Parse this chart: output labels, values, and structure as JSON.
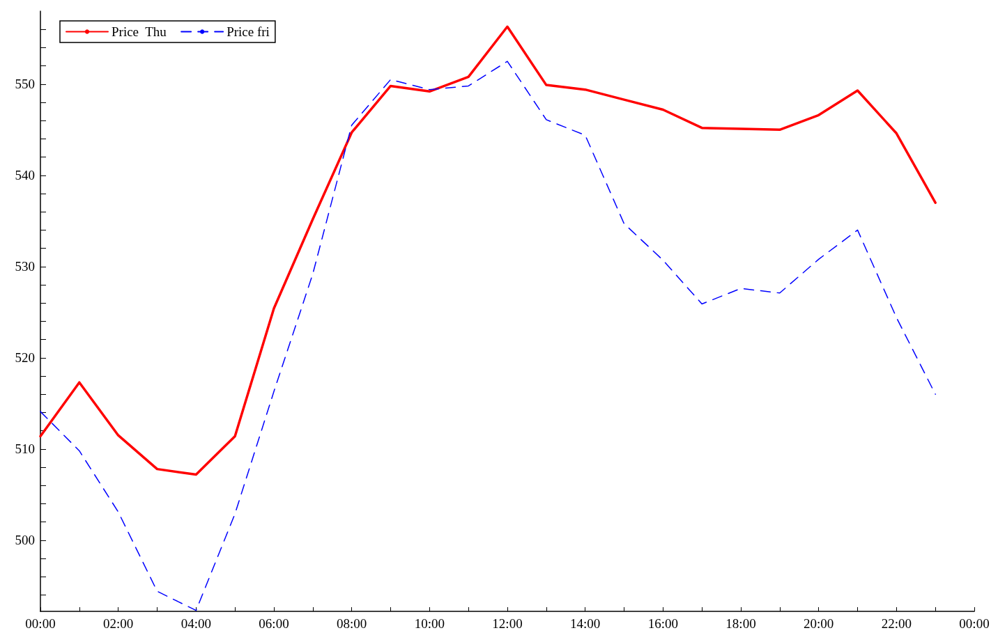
{
  "chart_data": {
    "type": "line",
    "x": [
      0,
      1,
      2,
      3,
      4,
      5,
      6,
      7,
      8,
      9,
      10,
      11,
      12,
      13,
      14,
      15,
      16,
      17,
      18,
      19,
      20,
      21,
      22,
      23
    ],
    "series": [
      {
        "name": "Price  Thu",
        "color": "#ff0000",
        "line_style": "solid",
        "values": [
          511.4,
          517.3,
          511.5,
          507.8,
          507.2,
          511.4,
          525.4,
          535.2,
          544.7,
          549.8,
          549.2,
          550.8,
          556.3,
          549.9,
          549.4,
          548.3,
          547.2,
          545.2,
          545.1,
          545.0,
          546.6,
          549.3,
          544.6,
          537.0
        ]
      },
      {
        "name": "Price fri",
        "color": "#0000ff",
        "line_style": "dashed",
        "values": [
          514.1,
          509.8,
          503.1,
          494.4,
          492.3,
          502.9,
          516.3,
          529.2,
          545.5,
          550.5,
          549.4,
          549.8,
          552.5,
          546.1,
          544.4,
          534.7,
          530.7,
          525.9,
          527.6,
          527.1,
          530.8,
          534.0,
          524.4,
          516.0
        ]
      }
    ],
    "xlim": [
      0,
      24
    ],
    "xticks": [
      {
        "value": 0,
        "label": "00:00"
      },
      {
        "value": 1,
        "label": null
      },
      {
        "value": 2,
        "label": "02:00"
      },
      {
        "value": 3,
        "label": null
      },
      {
        "value": 4,
        "label": "04:00"
      },
      {
        "value": 5,
        "label": null
      },
      {
        "value": 6,
        "label": "06:00"
      },
      {
        "value": 7,
        "label": null
      },
      {
        "value": 8,
        "label": "08:00"
      },
      {
        "value": 9,
        "label": null
      },
      {
        "value": 10,
        "label": "10:00"
      },
      {
        "value": 11,
        "label": null
      },
      {
        "value": 12,
        "label": "12:00"
      },
      {
        "value": 13,
        "label": null
      },
      {
        "value": 14,
        "label": "14:00"
      },
      {
        "value": 15,
        "label": null
      },
      {
        "value": 16,
        "label": "16:00"
      },
      {
        "value": 17,
        "label": null
      },
      {
        "value": 18,
        "label": "18:00"
      },
      {
        "value": 19,
        "label": null
      },
      {
        "value": 20,
        "label": "20:00"
      },
      {
        "value": 21,
        "label": null
      },
      {
        "value": 22,
        "label": "22:00"
      },
      {
        "value": 23,
        "label": null
      },
      {
        "value": 24,
        "label": "00:00"
      }
    ],
    "ylim": [
      492.2,
      558
    ],
    "yticks": [
      {
        "value": 494,
        "label": null
      },
      {
        "value": 496,
        "label": null
      },
      {
        "value": 498,
        "label": null
      },
      500,
      {
        "value": 502,
        "label": null
      },
      {
        "value": 504,
        "label": null
      },
      {
        "value": 506,
        "label": null
      },
      {
        "value": 508,
        "label": null
      },
      510,
      {
        "value": 512,
        "label": null
      },
      {
        "value": 514,
        "label": null
      },
      {
        "value": 516,
        "label": null
      },
      {
        "value": 518,
        "label": null
      },
      520,
      {
        "value": 522,
        "label": null
      },
      {
        "value": 524,
        "label": null
      },
      {
        "value": 526,
        "label": null
      },
      {
        "value": 528,
        "label": null
      },
      530,
      {
        "value": 532,
        "label": null
      },
      {
        "value": 534,
        "label": null
      },
      {
        "value": 536,
        "label": null
      },
      {
        "value": 538,
        "label": null
      },
      540,
      {
        "value": 542,
        "label": null
      },
      {
        "value": 544,
        "label": null
      },
      {
        "value": 546,
        "label": null
      },
      {
        "value": 548,
        "label": null
      },
      550,
      {
        "value": 552,
        "label": null
      },
      {
        "value": 554,
        "label": null
      },
      {
        "value": 556,
        "label": null
      }
    ],
    "legend": "top left",
    "marker": "none",
    "grid": false
  }
}
